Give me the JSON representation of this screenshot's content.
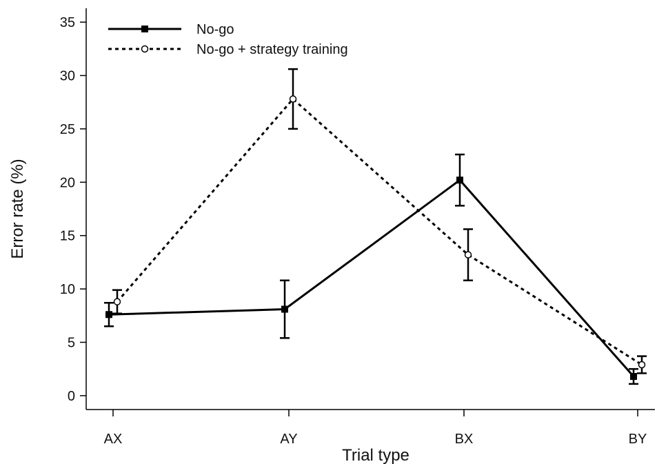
{
  "chart_data": {
    "type": "line",
    "categories": [
      "AX",
      "AY",
      "BX",
      "BY"
    ],
    "xlabel": "Trial type",
    "ylabel": "Error rate (%)",
    "ylim": [
      -1.3,
      36.3
    ],
    "yticks": [
      0,
      5,
      10,
      15,
      20,
      25,
      30,
      35
    ],
    "grid": false,
    "legend_position": "top-left",
    "series": [
      {
        "name": "No-go",
        "values": [
          7.6,
          8.1,
          20.2,
          1.8
        ],
        "error": [
          1.1,
          2.7,
          2.4,
          0.7
        ],
        "line_style": "solid",
        "marker": "filled-square",
        "color": "#000000"
      },
      {
        "name": "No-go + strategy training",
        "values": [
          8.8,
          27.8,
          13.2,
          2.9
        ],
        "error": [
          1.1,
          2.8,
          2.4,
          0.8
        ],
        "line_style": "dotted",
        "marker": "open-circle",
        "color": "#000000"
      }
    ]
  }
}
